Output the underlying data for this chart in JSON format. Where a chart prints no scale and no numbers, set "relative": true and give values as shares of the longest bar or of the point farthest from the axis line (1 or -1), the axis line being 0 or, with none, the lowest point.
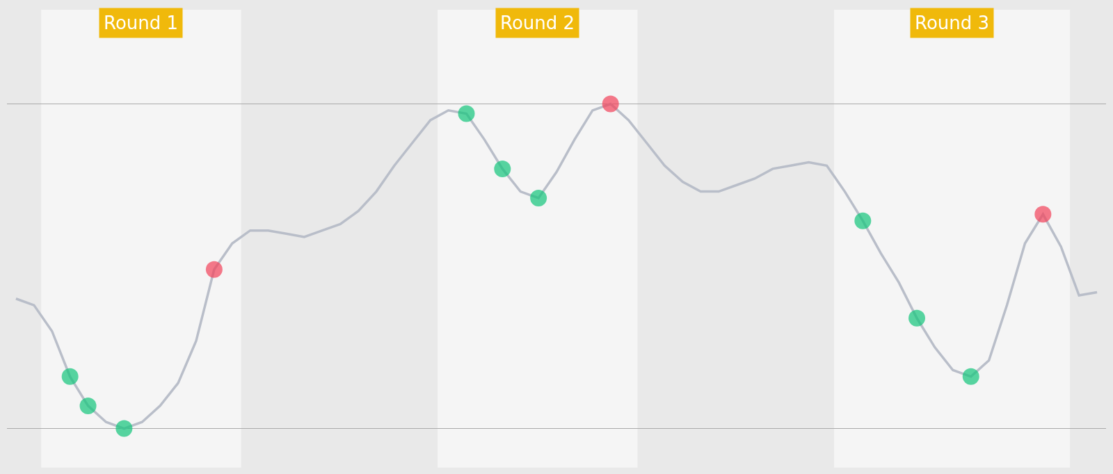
{
  "chart_data": {
    "type": "line",
    "relative": true,
    "grid": "y",
    "categories": [
      null,
      null,
      null,
      null,
      null,
      null,
      null,
      null,
      null,
      null,
      null,
      null,
      null,
      null,
      null,
      null,
      null,
      null,
      null,
      null,
      null,
      null,
      null,
      null,
      null,
      null,
      null,
      null,
      null,
      null,
      null,
      null,
      null,
      null,
      null,
      null,
      null,
      null,
      null,
      null,
      null,
      null,
      null,
      null,
      null,
      null,
      null,
      null,
      null,
      null,
      null,
      null,
      null,
      null,
      null,
      null,
      null,
      null,
      null,
      null,
      null
    ],
    "series": [
      {
        "color": "#b9bec9",
        "values": [
          0.4,
          0.38,
          0.3,
          0.16,
          0.07,
          0.02,
          0,
          0.02,
          0.07,
          0.14,
          0.27,
          0.49,
          0.57,
          0.61,
          0.61,
          0.6,
          0.59,
          0.61,
          0.63,
          0.67,
          0.73,
          0.81,
          0.88,
          0.95,
          0.98,
          0.97,
          0.89,
          0.8,
          0.73,
          0.71,
          0.79,
          0.89,
          0.98,
          1,
          0.95,
          0.88,
          0.81,
          0.76,
          0.73,
          0.73,
          0.75,
          0.77,
          0.8,
          0.81,
          0.82,
          0.81,
          0.73,
          0.64,
          0.54,
          0.45,
          0.34,
          0.25,
          0.18,
          0.16,
          0.21,
          0.38,
          0.57,
          0.66,
          0.56,
          0.41,
          0.42
        ],
        "colors": [
          null,
          null,
          null,
          "#12c47a",
          "#12c47a",
          null,
          "#12c47a",
          null,
          null,
          null,
          null,
          "#f2415a",
          null,
          null,
          null,
          null,
          null,
          null,
          null,
          null,
          null,
          null,
          null,
          null,
          null,
          "#12c47a",
          null,
          "#12c47a",
          null,
          "#12c47a",
          null,
          null,
          null,
          "#f2415a",
          null,
          null,
          null,
          null,
          null,
          null,
          null,
          null,
          null,
          null,
          null,
          null,
          null,
          "#12c47a",
          null,
          null,
          "#12c47a",
          null,
          null,
          "#12c47a",
          null,
          null,
          null,
          "#f2415a",
          null,
          null,
          null
        ]
      }
    ],
    "annotations": [
      "Round 1",
      "Round 2",
      "Round 3"
    ]
  }
}
